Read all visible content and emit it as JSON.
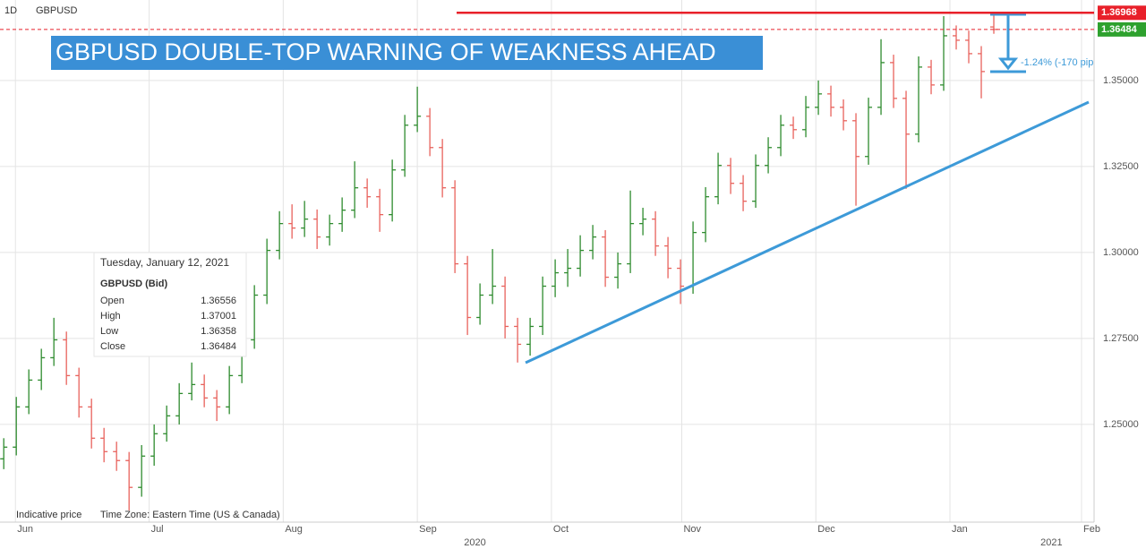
{
  "chart_data": {
    "type": "ohlc",
    "interval": "1D",
    "symbol": "GBPUSD",
    "annotation": "GBPUSD DOUBLE-TOP WARNING OF WEAKNESS AHEAD",
    "move_label": "-1.24% (-170 pip",
    "resistance": 1.36968,
    "resistance_color": "#e8202a",
    "last_color": "#2ea12e",
    "up_color": "#2e8b2e",
    "down_color": "#e8625c",
    "trend_color": "#3d9ad8",
    "grid": true,
    "categories": [
      null,
      null,
      null,
      null,
      null,
      null,
      null,
      null,
      null,
      null,
      null,
      null,
      null,
      null,
      null,
      null,
      null,
      null,
      null,
      null,
      null,
      null,
      null,
      null,
      null,
      null,
      null,
      null,
      null,
      null,
      null,
      null,
      null,
      null,
      null,
      null,
      null,
      null,
      null,
      null,
      null,
      null,
      null,
      null,
      null,
      null,
      null,
      null,
      null,
      null,
      null,
      null,
      null,
      null,
      null,
      null,
      null,
      null,
      null,
      null,
      null,
      null,
      null,
      null,
      null,
      null,
      null,
      null,
      null,
      null,
      null,
      null,
      null,
      null,
      null,
      null,
      null,
      null,
      null,
      null
    ],
    "open": [
      1.24,
      1.2434,
      1.2551,
      1.2629,
      1.2694,
      1.2746,
      1.2642,
      1.2551,
      1.246,
      1.2421,
      1.2395,
      1.2317,
      1.2408,
      1.2473,
      1.2525,
      1.259,
      1.2616,
      1.2577,
      1.2551,
      1.2642,
      1.2746,
      1.2876,
      1.3006,
      1.3084,
      1.3071,
      1.3097,
      1.3045,
      1.3084,
      1.3123,
      1.3188,
      1.3162,
      1.311,
      1.324,
      1.337,
      1.3396,
      1.3305,
      1.3188,
      1.2967,
      1.2811,
      1.2876,
      1.2902,
      1.2785,
      1.2733,
      1.2785,
      1.2902,
      1.2941,
      1.2954,
      1.3006,
      1.3045,
      1.2928,
      1.2967,
      1.3084,
      1.3097,
      1.3019,
      1.2954,
      1.2902,
      1.3058,
      1.3162,
      1.3253,
      1.3201,
      1.3149,
      1.3253,
      1.3305,
      1.337,
      1.3357,
      1.3422,
      1.3461,
      1.3422,
      1.3383,
      1.3279,
      1.3422,
      1.3552,
      1.3448,
      1.3344,
      1.3539,
      1.3487,
      1.363,
      1.3617,
      1.3578,
      1.36556
    ],
    "high": [
      1.246,
      1.258,
      1.266,
      1.272,
      1.281,
      1.277,
      1.2665,
      1.2575,
      1.249,
      1.245,
      1.242,
      1.244,
      1.25,
      1.2555,
      1.262,
      1.268,
      1.2645,
      1.26,
      1.267,
      1.2775,
      1.2905,
      1.304,
      1.312,
      1.314,
      1.315,
      1.3125,
      1.311,
      1.316,
      1.3265,
      1.3215,
      1.3185,
      1.327,
      1.34,
      1.3482,
      1.342,
      1.333,
      1.321,
      1.299,
      1.291,
      1.301,
      1.293,
      1.281,
      1.281,
      1.293,
      1.298,
      1.301,
      1.305,
      1.308,
      1.3065,
      1.3,
      1.318,
      1.313,
      1.312,
      1.3045,
      1.298,
      1.309,
      1.319,
      1.329,
      1.3275,
      1.3225,
      1.3285,
      1.3335,
      1.34,
      1.3395,
      1.3455,
      1.35,
      1.3485,
      1.3445,
      1.3405,
      1.345,
      1.362,
      1.3575,
      1.347,
      1.357,
      1.356,
      1.3687,
      1.366,
      1.3645,
      1.36,
      1.37001
    ],
    "low": [
      1.237,
      1.241,
      1.253,
      1.26,
      1.267,
      1.2615,
      1.252,
      1.243,
      1.239,
      1.2365,
      1.225,
      1.229,
      1.238,
      1.245,
      1.25,
      1.257,
      1.255,
      1.251,
      1.253,
      1.262,
      1.272,
      1.285,
      1.298,
      1.304,
      1.3045,
      1.301,
      1.302,
      1.306,
      1.31,
      1.313,
      1.306,
      1.309,
      1.322,
      1.335,
      1.328,
      1.316,
      1.294,
      1.276,
      1.279,
      1.285,
      1.275,
      1.268,
      1.27,
      1.276,
      1.287,
      1.29,
      1.293,
      1.298,
      1.29,
      1.2895,
      1.294,
      1.305,
      1.299,
      1.2925,
      1.285,
      1.288,
      1.303,
      1.314,
      1.317,
      1.312,
      1.313,
      1.323,
      1.328,
      1.333,
      1.3335,
      1.34,
      1.3395,
      1.3355,
      1.3136,
      1.3255,
      1.34,
      1.342,
      1.3185,
      1.332,
      1.346,
      1.347,
      1.359,
      1.355,
      1.3448,
      1.36358
    ],
    "close": [
      1.2434,
      1.2551,
      1.2629,
      1.2694,
      1.2746,
      1.2642,
      1.2551,
      1.246,
      1.2421,
      1.2395,
      1.2317,
      1.2408,
      1.2473,
      1.2525,
      1.259,
      1.2616,
      1.2577,
      1.2551,
      1.2642,
      1.2746,
      1.2876,
      1.3006,
      1.3084,
      1.3071,
      1.3097,
      1.3045,
      1.3084,
      1.3123,
      1.3188,
      1.3162,
      1.311,
      1.324,
      1.337,
      1.3396,
      1.3305,
      1.3188,
      1.2967,
      1.2811,
      1.2876,
      1.2902,
      1.2785,
      1.2733,
      1.2785,
      1.2902,
      1.2941,
      1.2954,
      1.3006,
      1.3045,
      1.2928,
      1.2967,
      1.3084,
      1.3097,
      1.3019,
      1.2954,
      1.2902,
      1.3058,
      1.3162,
      1.3253,
      1.3201,
      1.3149,
      1.3253,
      1.3305,
      1.337,
      1.3357,
      1.3422,
      1.3461,
      1.3422,
      1.3383,
      1.3279,
      1.3422,
      1.3552,
      1.3448,
      1.3344,
      1.3539,
      1.3487,
      1.363,
      1.3617,
      1.3578,
      1.3526,
      1.36484
    ],
    "ylim": [
      1.2216,
      1.3734
    ],
    "yticks": [
      {
        "value": 1.25,
        "label": "1.25000"
      },
      {
        "value": 1.275,
        "label": "1.27500"
      },
      {
        "value": 1.3,
        "label": "1.30000"
      },
      {
        "value": 1.325,
        "label": "1.32500"
      },
      {
        "value": 1.35,
        "label": "1.35000"
      }
    ],
    "xlim": [
      -0.3,
      87
    ],
    "xticks": [
      {
        "value": 0.93,
        "label": "Jun"
      },
      {
        "value": 11.6,
        "label": "Jul"
      },
      {
        "value": 22.3,
        "label": "Aug"
      },
      {
        "value": 33,
        "label": "Sep"
      },
      {
        "value": 43.7,
        "label": "Oct"
      },
      {
        "value": 54.1,
        "label": "Nov"
      },
      {
        "value": 64.8,
        "label": "Dec"
      },
      {
        "value": 75.5,
        "label": "Jan"
      },
      {
        "value": 86,
        "label": "Feb"
      }
    ],
    "year_ticks": [
      {
        "value": 37.6,
        "label": "2020"
      },
      {
        "value": 83.6,
        "label": "2021"
      }
    ],
    "tooltip": {
      "date": "Tuesday, January 12, 2021",
      "heading": "GBPUSD (Bid)",
      "fields": [
        "Open",
        "High",
        "Low",
        "Close"
      ]
    },
    "footer": [
      "Indicative price",
      "Time Zone: Eastern Time (US & Canada)"
    ]
  }
}
